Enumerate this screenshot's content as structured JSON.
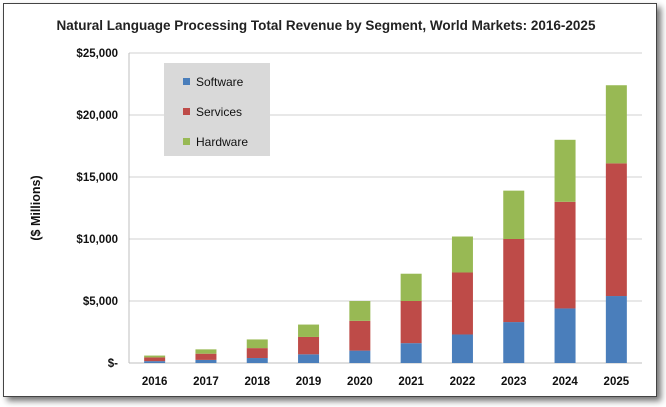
{
  "chart_data": {
    "type": "bar",
    "stacked": true,
    "title": "Natural Language Processing Total Revenue by Segment, World Markets: 2016-2025",
    "xlabel": "",
    "ylabel": "($ Millions)",
    "ylim": [
      0,
      25000
    ],
    "y_ticks": [
      0,
      5000,
      10000,
      15000,
      20000,
      25000
    ],
    "y_tick_labels": [
      "$-",
      "$5,000",
      "$10,000",
      "$15,000",
      "$20,000",
      "$25,000"
    ],
    "grid": true,
    "legend_position": "top-left",
    "categories": [
      "2016",
      "2017",
      "2018",
      "2019",
      "2020",
      "2021",
      "2022",
      "2023",
      "2024",
      "2025"
    ],
    "series": [
      {
        "name": "Software",
        "color": "#4a7ebb",
        "values": [
          150,
          250,
          400,
          700,
          1000,
          1600,
          2300,
          3300,
          4400,
          5400
        ]
      },
      {
        "name": "Services",
        "color": "#be4b48",
        "values": [
          300,
          500,
          800,
          1400,
          2400,
          3400,
          5000,
          6700,
          8600,
          10700
        ]
      },
      {
        "name": "Hardware",
        "color": "#98b954",
        "values": [
          150,
          350,
          700,
          1000,
          1600,
          2200,
          2900,
          3900,
          5000,
          6300
        ]
      }
    ]
  }
}
